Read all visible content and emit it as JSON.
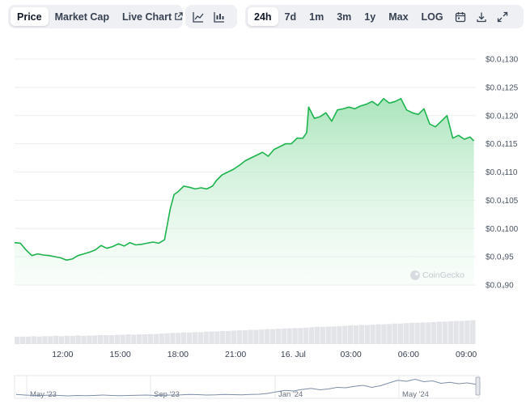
{
  "toolbar": {
    "view_tabs": [
      "Price",
      "Market Cap",
      "Live Chart"
    ],
    "range_tabs": [
      "24h",
      "7d",
      "1m",
      "3m",
      "1y",
      "Max",
      "LOG"
    ],
    "active_view": "Price",
    "active_range": "24h",
    "icons": [
      "line-chart-icon",
      "candlestick-chart-icon",
      "external-link-icon",
      "calendar-icon",
      "download-icon",
      "fullscreen-icon"
    ]
  },
  "watermark": "CoinGecko",
  "colors": {
    "line": "#1db34d",
    "fill": "#d4f1dc",
    "volume": "#e2e4e8",
    "grid": "#eceef1"
  },
  "chart_data": {
    "type": "area",
    "y_ticks": [
      "$0.0₄130",
      "$0.0₄125",
      "$0.0₄120",
      "$0.0₄115",
      "$0.0₄110",
      "$0.0₄105",
      "$0.0₄100",
      "$0.0₄95",
      "$0.0₄90"
    ],
    "ylim": [
      9,
      13
    ],
    "x_ticks": [
      "12:00",
      "15:00",
      "18:00",
      "21:00",
      "16. Jul",
      "03:00",
      "06:00",
      "09:00"
    ],
    "xlim_hours": [
      9.5,
      33.5
    ],
    "series": [
      {
        "x": [
          9.5,
          9.8,
          10.1,
          10.4,
          10.7,
          11.0,
          11.3,
          11.6,
          11.9,
          12.2,
          12.5,
          12.8,
          13.1,
          13.4,
          13.7,
          14.0,
          14.3,
          14.6,
          14.9,
          15.2,
          15.5,
          15.8,
          16.1,
          16.4,
          16.7,
          17.0,
          17.3,
          17.6,
          17.8,
          18.0,
          18.3,
          18.6,
          18.9,
          19.2,
          19.5,
          19.8,
          20.0,
          20.3,
          20.6,
          20.9,
          21.2,
          21.5,
          21.8,
          22.1,
          22.4,
          22.7,
          23.0,
          23.3,
          23.6,
          23.9,
          24.2,
          24.5,
          24.7,
          24.8,
          25.1,
          25.4,
          25.7,
          26.0,
          26.3,
          26.6,
          26.9,
          27.2,
          27.5,
          27.8,
          28.1,
          28.4,
          28.7,
          29.0,
          29.3,
          29.6,
          29.9,
          30.2,
          30.5,
          30.8,
          31.1,
          31.4,
          31.7,
          32.0,
          32.3,
          32.6,
          32.9,
          33.2,
          33.4
        ],
        "y": [
          9.75,
          9.74,
          9.62,
          9.52,
          9.55,
          9.53,
          9.52,
          9.5,
          9.48,
          9.44,
          9.46,
          9.52,
          9.55,
          9.58,
          9.62,
          9.7,
          9.65,
          9.68,
          9.73,
          9.69,
          9.75,
          9.71,
          9.72,
          9.74,
          9.76,
          9.74,
          9.8,
          10.35,
          10.6,
          10.65,
          10.75,
          10.73,
          10.7,
          10.72,
          10.7,
          10.75,
          10.85,
          10.95,
          11.0,
          11.05,
          11.12,
          11.2,
          11.25,
          11.3,
          11.35,
          11.28,
          11.4,
          11.45,
          11.5,
          11.5,
          11.6,
          11.6,
          11.7,
          12.15,
          11.95,
          11.98,
          12.05,
          11.9,
          12.1,
          12.12,
          12.15,
          12.12,
          12.17,
          12.2,
          12.25,
          12.18,
          12.3,
          12.22,
          12.25,
          12.3,
          12.1,
          12.05,
          12.02,
          12.12,
          11.85,
          11.8,
          11.9,
          12.0,
          11.6,
          11.65,
          11.58,
          11.62,
          11.55
        ]
      }
    ],
    "volume": [
      0.2,
      0.2,
      0.2,
      0.21,
      0.2,
      0.21,
      0.21,
      0.22,
      0.21,
      0.22,
      0.22,
      0.23,
      0.22,
      0.23,
      0.23,
      0.24,
      0.24,
      0.24,
      0.25,
      0.25,
      0.26,
      0.25,
      0.26,
      0.26,
      0.27,
      0.27,
      0.28,
      0.29,
      0.3,
      0.3,
      0.31,
      0.31,
      0.32,
      0.32,
      0.33,
      0.34,
      0.34,
      0.35,
      0.35,
      0.36,
      0.37,
      0.37,
      0.38,
      0.38,
      0.39,
      0.4,
      0.4,
      0.41,
      0.42,
      0.42,
      0.43,
      0.43,
      0.44,
      0.45,
      0.46,
      0.46,
      0.47,
      0.47,
      0.48,
      0.49,
      0.5,
      0.5,
      0.51,
      0.51,
      0.52,
      0.53,
      0.53,
      0.54,
      0.55,
      0.55,
      0.56,
      0.57,
      0.57,
      0.58,
      0.58,
      0.59,
      0.6,
      0.6,
      0.61,
      0.62,
      0.62,
      0.63,
      0.64
    ],
    "navigator": {
      "labels": [
        "May '23",
        "Sep '23",
        "Jan '24",
        "May '24"
      ],
      "values": [
        0.15,
        0.12,
        0.1,
        0.1,
        0.12,
        0.1,
        0.08,
        0.1,
        0.09,
        0.1,
        0.12,
        0.1,
        0.09,
        0.1,
        0.11,
        0.12,
        0.1,
        0.11,
        0.12,
        0.13,
        0.15,
        0.14,
        0.12,
        0.13,
        0.15,
        0.14,
        0.13,
        0.15,
        0.16,
        0.2,
        0.28,
        0.35,
        0.32,
        0.4,
        0.45,
        0.38,
        0.42,
        0.5,
        0.48,
        0.55,
        0.6,
        0.5,
        0.58,
        0.72,
        0.85,
        0.8,
        0.9,
        0.78,
        0.82,
        0.7,
        0.75,
        0.68,
        0.72,
        0.65
      ]
    }
  }
}
